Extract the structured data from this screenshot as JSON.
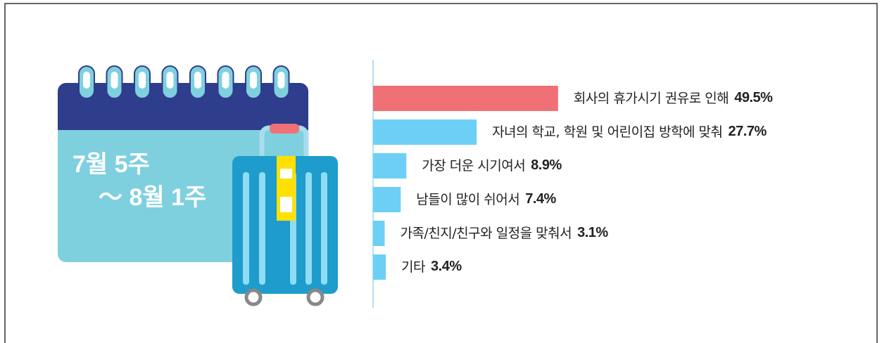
{
  "chart_data": {
    "type": "hbar",
    "annotations": [
      "7월 5주",
      "～ 8월 1주"
    ],
    "categories": [
      "회사의 휴가시기 권유로 인해",
      "자녀의 학교, 학원 및 어린이집 방학에 맞춰",
      "가장 더운 시기여서",
      "남들이 많이 쉬어서",
      "가족/친지/친구와 일정을 맞춰서",
      "기타"
    ],
    "values": [
      49.5,
      27.7,
      8.9,
      7.4,
      3.1,
      3.4
    ],
    "value_labels": [
      "49.5%",
      "27.7%",
      "8.9%",
      "7.4%",
      "3.1%",
      "3.4%"
    ],
    "colors": [
      "#f07175",
      "#6dcff6",
      "#6dcff6",
      "#6dcff6",
      "#6dcff6",
      "#6dcff6"
    ]
  }
}
